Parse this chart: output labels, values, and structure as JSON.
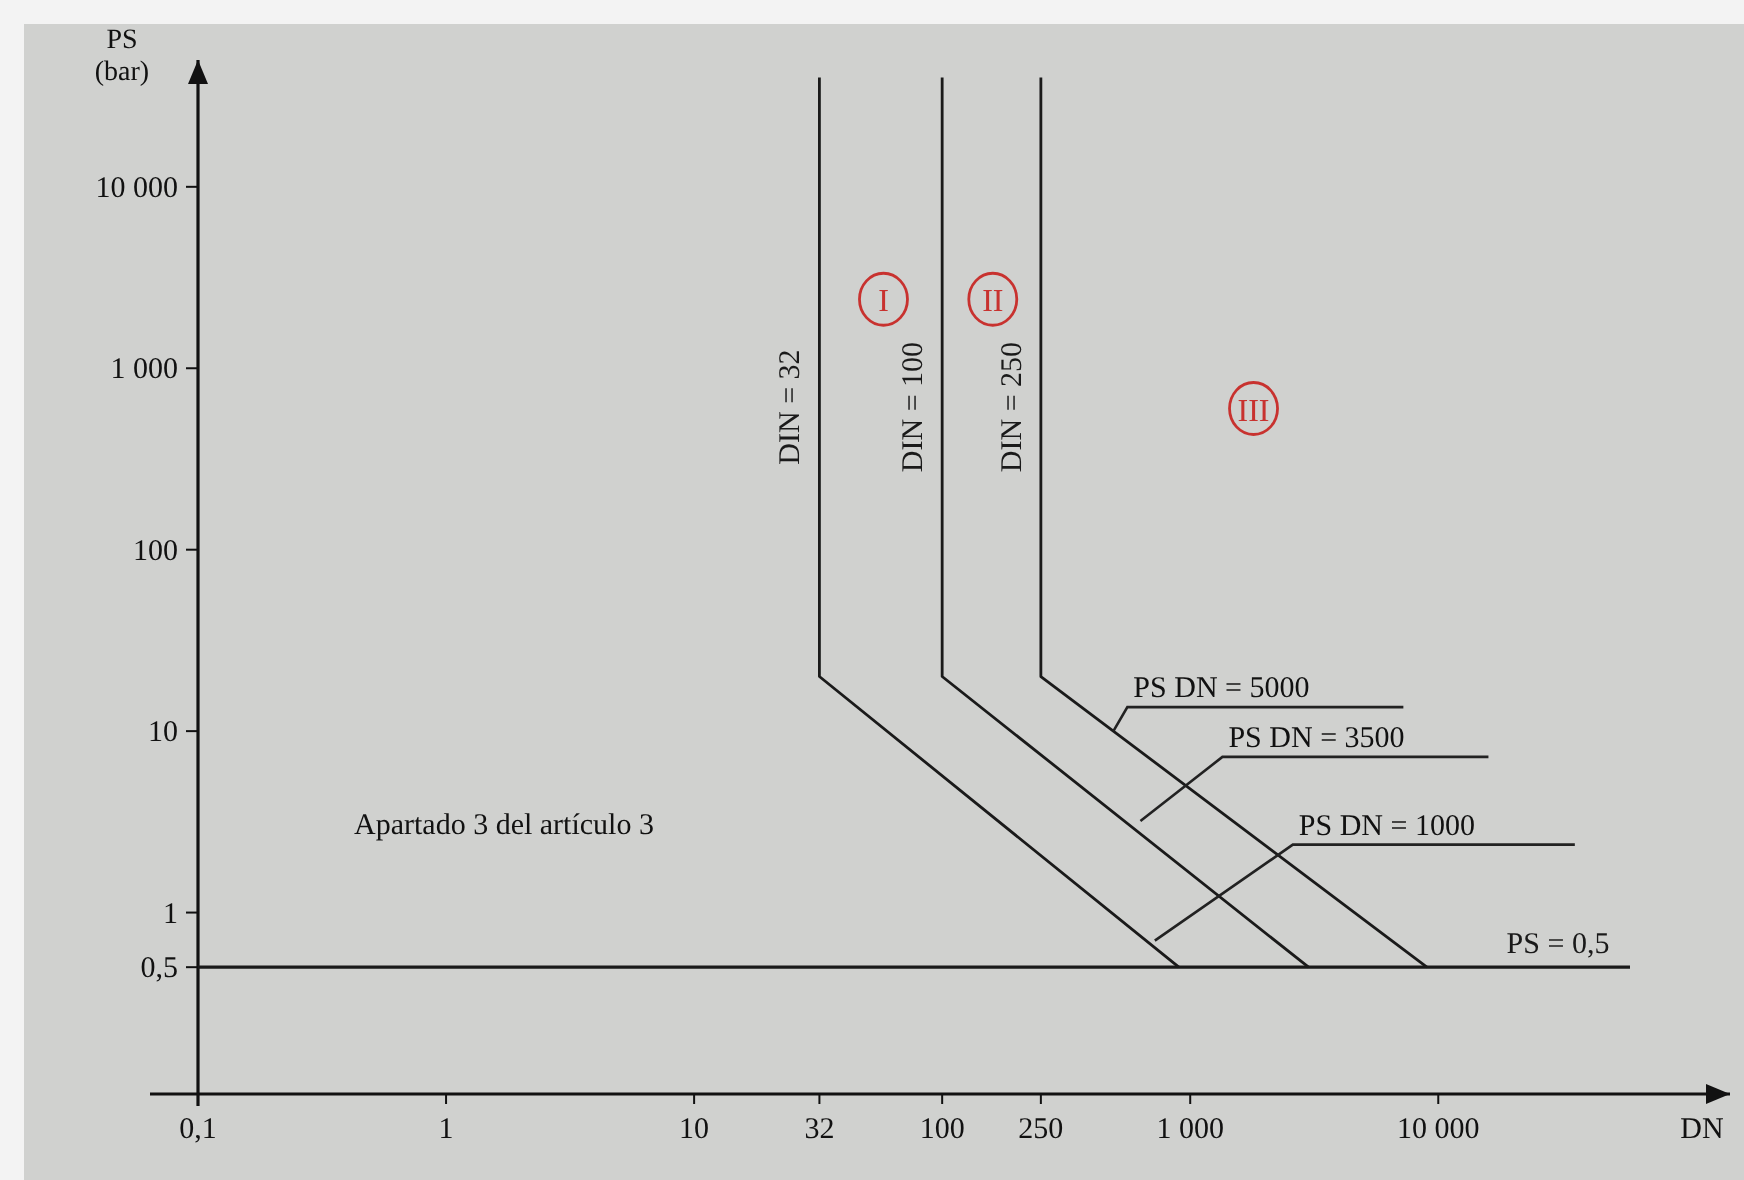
{
  "chart_data": {
    "type": "line",
    "xlabel": "DN",
    "ylabel": "PS\n(bar)",
    "log": "xy",
    "grid": false,
    "marker": "none",
    "line_style": "solid",
    "xlim": [
      0.1,
      150000
    ],
    "ylim": [
      0.1,
      50000
    ],
    "xticks": [
      {
        "value": 0.1,
        "label": "0,1"
      },
      1,
      10,
      32,
      100,
      250,
      {
        "value": 1000,
        "label": "1 000"
      },
      {
        "value": 10000,
        "label": "10 000"
      }
    ],
    "yticks": [
      {
        "value": 0.5,
        "label": "0,5"
      },
      1,
      10,
      100,
      {
        "value": 1000,
        "label": "1 000"
      },
      {
        "value": 10000,
        "label": "10 000"
      }
    ],
    "series": [
      {
        "name": "DIN = 32",
        "color": "#1a1a1a",
        "x": [
          32,
          32,
          900
        ],
        "values": [
          40000,
          20,
          0.5
        ]
      },
      {
        "name": "DIN = 100",
        "color": "#1a1a1a",
        "x": [
          100,
          100,
          3000
        ],
        "values": [
          40000,
          20,
          0.5
        ]
      },
      {
        "name": "DIN = 250",
        "color": "#1a1a1a",
        "x": [
          250,
          250,
          9000
        ],
        "values": [
          40000,
          20,
          0.5
        ]
      }
    ],
    "ref_lines": [
      {
        "axis": "y",
        "value": 0.5,
        "label": "PS = 0,5",
        "color": "#1a1a1a"
      }
    ],
    "annotations": [
      {
        "text": "PS DN = 5000",
        "x": 490,
        "y": 10
      },
      {
        "text": "PS DN = 3500",
        "x": 630,
        "y": 3.2
      },
      {
        "text": "PS DN = 1000",
        "x": 720,
        "y": 0.7
      },
      {
        "text": "I",
        "x": 58,
        "y": 2400
      },
      {
        "text": "II",
        "x": 160,
        "y": 2400
      },
      {
        "text": "III",
        "x": 1800,
        "y": 600
      },
      "Apartado 3 del artículo 3"
    ]
  }
}
